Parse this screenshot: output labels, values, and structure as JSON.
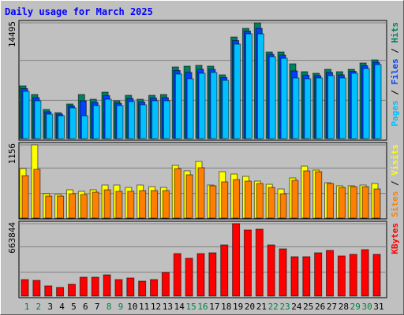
{
  "title": "Daily usage for March 2025",
  "legend_separator": " / ",
  "category_label_colors": [
    "#008040",
    "#008040",
    "#000000",
    "#000000",
    "#000000",
    "#000000",
    "#000000",
    "#008040",
    "#008040",
    "#000000",
    "#000000",
    "#000000",
    "#000000",
    "#000000",
    "#008040",
    "#008040",
    "#000000",
    "#000000",
    "#000000",
    "#000000",
    "#000000",
    "#008040",
    "#008040",
    "#000000",
    "#000000",
    "#000000",
    "#000000",
    "#000000",
    "#008040",
    "#008040",
    "#000000"
  ],
  "chart_data": [
    {
      "type": "bar",
      "categories": [
        "1",
        "2",
        "3",
        "4",
        "5",
        "6",
        "7",
        "8",
        "9",
        "10",
        "11",
        "12",
        "13",
        "14",
        "15",
        "16",
        "17",
        "18",
        "19",
        "20",
        "21",
        "22",
        "23",
        "24",
        "25",
        "26",
        "27",
        "28",
        "29",
        "30",
        "31"
      ],
      "ylim": [
        0,
        14495
      ],
      "yticks": [
        14495
      ],
      "series": [
        {
          "name": "Hits",
          "color": "#008060",
          "values": [
            6606,
            5522,
            3648,
            3254,
            4338,
            5522,
            4930,
            5817,
            4733,
            5423,
            4930,
            5423,
            5522,
            8973,
            9071,
            9170,
            9071,
            7987,
            12719,
            13804,
            14495,
            10846,
            10846,
            9367,
            8381,
            8184,
            8677,
            8381,
            8677,
            9466,
            9860
          ]
        },
        {
          "name": "Files",
          "color": "#0040ff",
          "values": [
            6261,
            5128,
            3353,
            3057,
            4092,
            4733,
            4536,
            5374,
            4437,
            5029,
            4585,
            5078,
            5128,
            8529,
            8283,
            8677,
            8677,
            7642,
            12276,
            13459,
            13805,
            10550,
            10452,
            8480,
            7938,
            7888,
            8283,
            7987,
            8431,
            9121,
            9564
          ]
        },
        {
          "name": "Pages",
          "color": "#00c0ff",
          "values": [
            5916,
            4733,
            3057,
            2859,
            3845,
            2859,
            4141,
            4930,
            4141,
            4634,
            4240,
            4733,
            4733,
            8085,
            7494,
            8184,
            8282,
            7296,
            11832,
            13114,
            13114,
            10254,
            10057,
            7592,
            7494,
            7592,
            7888,
            7592,
            8184,
            8775,
            9268
          ]
        }
      ]
    },
    {
      "type": "bar",
      "categories": [
        "1",
        "2",
        "3",
        "4",
        "5",
        "6",
        "7",
        "8",
        "9",
        "10",
        "11",
        "12",
        "13",
        "14",
        "15",
        "16",
        "17",
        "18",
        "19",
        "20",
        "21",
        "22",
        "23",
        "24",
        "25",
        "26",
        "27",
        "28",
        "29",
        "30",
        "31"
      ],
      "ylim": [
        0,
        1156
      ],
      "yticks": [
        1156
      ],
      "series": [
        {
          "name": "Visits",
          "color": "#ffff00",
          "values": [
            783,
            1156,
            385,
            373,
            447,
            423,
            447,
            522,
            522,
            485,
            522,
            497,
            485,
            833,
            746,
            895,
            522,
            733,
            696,
            659,
            584,
            534,
            460,
            634,
            820,
            758,
            559,
            510,
            510,
            522,
            547
          ]
        },
        {
          "name": "Sites",
          "color": "#ff8000",
          "values": [
            671,
            771,
            348,
            348,
            385,
            373,
            410,
            447,
            423,
            423,
            435,
            435,
            435,
            783,
            684,
            796,
            510,
            572,
            609,
            584,
            547,
            485,
            385,
            597,
            746,
            733,
            547,
            485,
            497,
            497,
            460
          ]
        }
      ]
    },
    {
      "type": "bar",
      "categories": [
        "1",
        "2",
        "3",
        "4",
        "5",
        "6",
        "7",
        "8",
        "9",
        "10",
        "11",
        "12",
        "13",
        "14",
        "15",
        "16",
        "17",
        "18",
        "19",
        "20",
        "21",
        "22",
        "23",
        "24",
        "25",
        "26",
        "27",
        "28",
        "29",
        "30",
        "31"
      ],
      "ylim": [
        0,
        663844
      ],
      "yticks": [
        663844
      ],
      "series": [
        {
          "name": "KBytes",
          "color": "#ff0000",
          "values": [
            151536,
            144320,
            93808,
            79376,
            108240,
            173184,
            173184,
            194832,
            151536,
            165968,
            137104,
            151536,
            216480,
            389664,
            346368,
            389664,
            396880,
            469040,
            663844,
            606144,
            613360,
            469040,
            432960,
            360800,
            360800,
            396880,
            418528,
            368016,
            382448,
            425744,
            382448
          ]
        }
      ]
    }
  ]
}
